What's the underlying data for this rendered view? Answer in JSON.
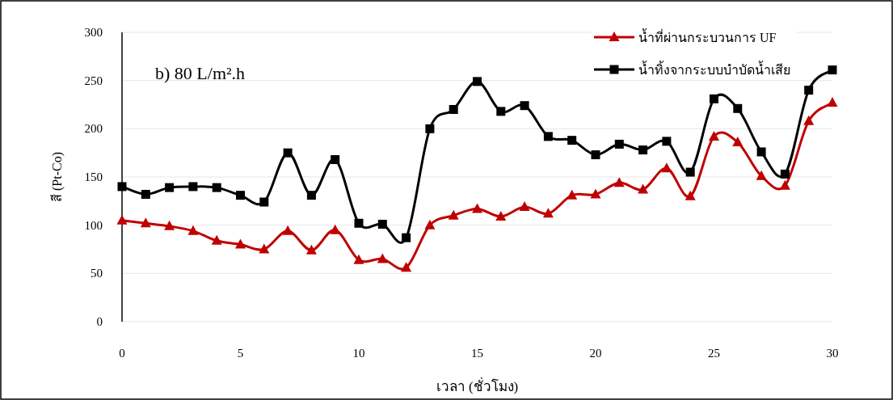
{
  "chart_data": {
    "type": "line",
    "xlabel": "เวลา (ชั่วโมง)",
    "ylabel": "สี (Pt-Co)",
    "annotations": [
      "b) 80 L/m².h"
    ],
    "x": [
      0,
      1,
      2,
      3,
      4,
      5,
      6,
      7,
      8,
      9,
      10,
      11,
      12,
      13,
      14,
      15,
      16,
      17,
      18,
      19,
      20,
      21,
      22,
      23,
      24,
      25,
      26,
      27,
      28,
      29,
      30
    ],
    "series": [
      {
        "name": "น้ำที่ผ่านกระบวนการ UF",
        "color": "#c00000",
        "marker": "triangle",
        "values": [
          105,
          102,
          99,
          94,
          84,
          80,
          75,
          94,
          74,
          95,
          64,
          65,
          56,
          100,
          110,
          117,
          109,
          119,
          112,
          131,
          132,
          144,
          137,
          159,
          130,
          192,
          186,
          151,
          141,
          208,
          227
        ]
      },
      {
        "name": "น้ำทิ้งจากระบบบำบัดน้ำเสีย",
        "color": "#000000",
        "marker": "square",
        "values": [
          140,
          132,
          139,
          140,
          139,
          131,
          124,
          175,
          131,
          168,
          102,
          101,
          87,
          200,
          220,
          249,
          218,
          224,
          192,
          188,
          173,
          184,
          178,
          187,
          155,
          231,
          221,
          176,
          153,
          240,
          261
        ]
      }
    ],
    "xlim": [
      0,
      30
    ],
    "xticks": [
      0,
      5,
      10,
      15,
      20,
      25,
      30
    ],
    "ylim": [
      0,
      300
    ],
    "yticks": [
      0,
      50,
      100,
      150,
      200,
      250,
      300
    ],
    "grid": "y",
    "legend": "top right",
    "line_style": "solid"
  }
}
